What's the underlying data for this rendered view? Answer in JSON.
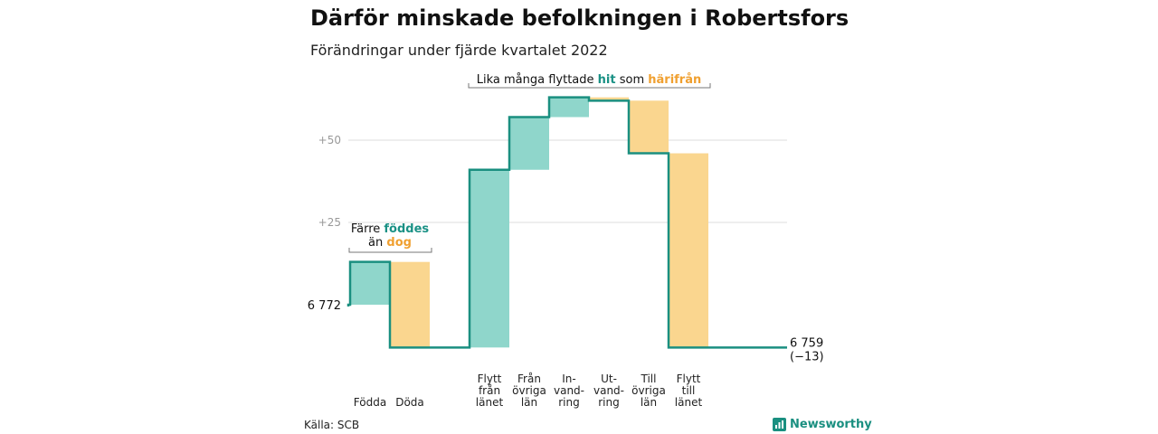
{
  "title": "Därför minskade befolkningen i Robertsfors",
  "subtitle": "Förändringar under fjärde kvartalet 2022",
  "source": "Källa: SCB",
  "brand": "Newsworthy",
  "colors": {
    "increase": "#8fd6cb",
    "decrease": "#fad68f",
    "line": "#1a8f80",
    "teal_text": "#1a9185",
    "orange_text": "#f0a030",
    "grid": "#dddddd"
  },
  "annotations": {
    "births_deaths": {
      "line1_prefix": "Färre ",
      "line1_highlight": "föddes",
      "line2_prefix": "än ",
      "line2_highlight": "dog"
    },
    "migration": {
      "prefix": "Lika många flyttade ",
      "highlight1": "hit",
      "middle": " som ",
      "highlight2": "härifrån"
    }
  },
  "chart_data": {
    "type": "waterfall",
    "baseline": 6772,
    "start_label": "6 772",
    "end_value": 6759,
    "end_label": "6 759",
    "end_change_label": "(−13)",
    "y_tick_labels": [
      "+25",
      "+50"
    ],
    "y_ticks": [
      25,
      50
    ],
    "ylim": [
      -13,
      60
    ],
    "grid": true,
    "steps": [
      {
        "label_lines": [
          "Födda"
        ],
        "change": 13
      },
      {
        "label_lines": [
          "Döda"
        ],
        "change": -26
      },
      {
        "label_lines": [
          "Flytt",
          "från",
          "länet"
        ],
        "change": 54
      },
      {
        "label_lines": [
          "Från",
          "övriga",
          "län"
        ],
        "change": 16
      },
      {
        "label_lines": [
          "In-",
          "vand-",
          "ring"
        ],
        "change": 6
      },
      {
        "label_lines": [
          "Ut-",
          "vand-",
          "ring"
        ],
        "change": -1
      },
      {
        "label_lines": [
          "Till",
          "övriga",
          "län"
        ],
        "change": -16
      },
      {
        "label_lines": [
          "Flytt",
          "till",
          "länet"
        ],
        "change": -59
      }
    ]
  }
}
